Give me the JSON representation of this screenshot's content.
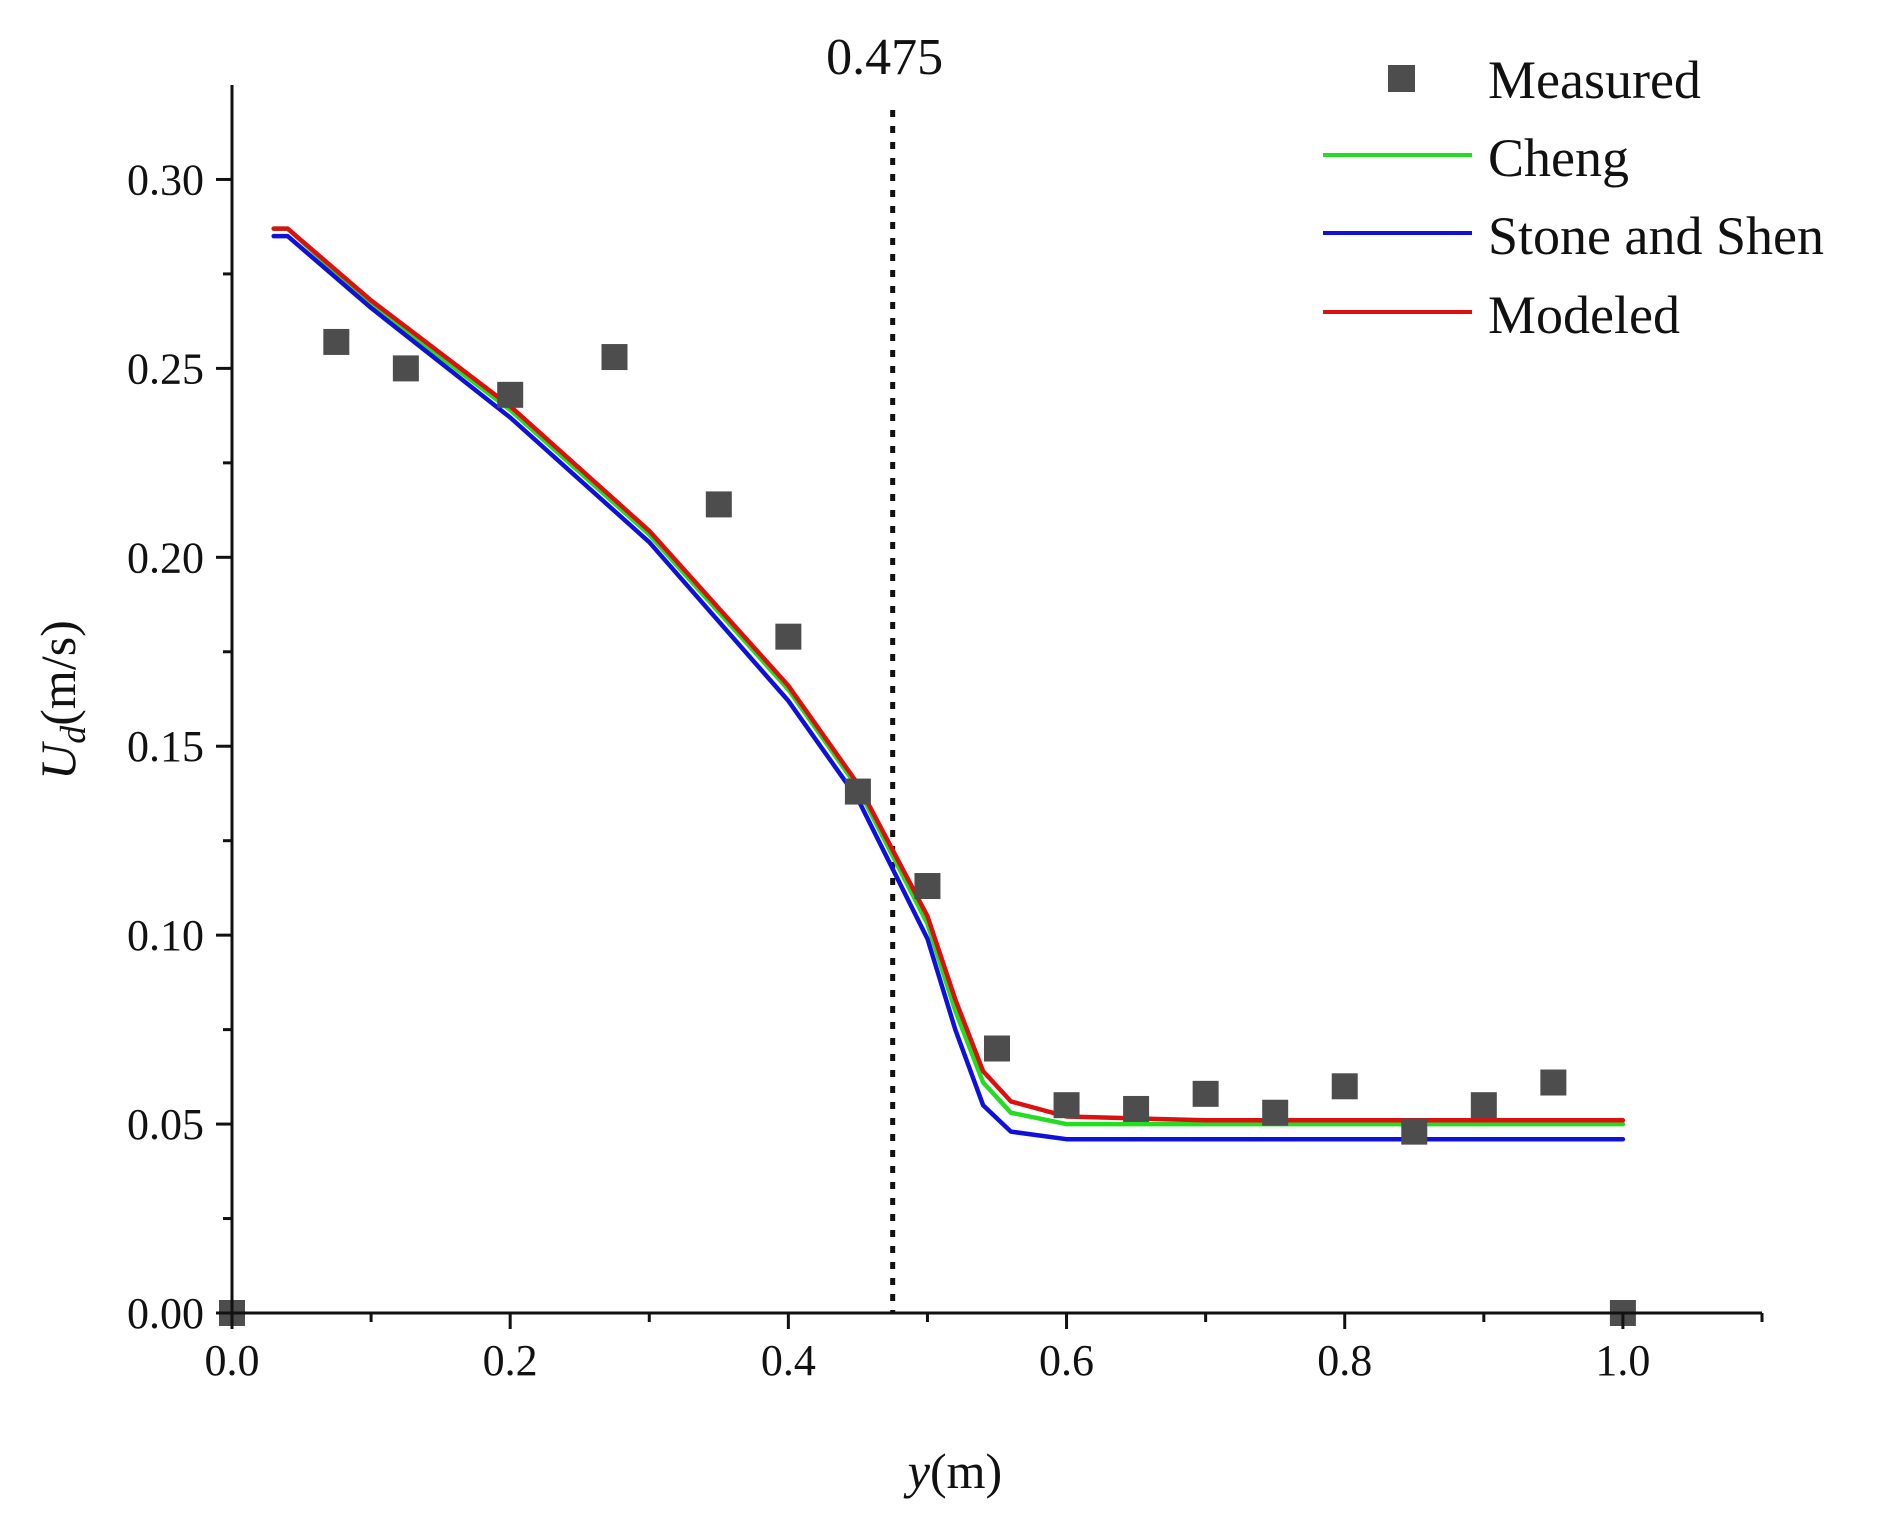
{
  "chart_data": {
    "type": "line",
    "xlabel": {
      "italic": "y",
      "rest": "(m)"
    },
    "ylabel": {
      "italic": "U",
      "subscript": "d",
      "rest": "(m/s)"
    },
    "xlim": [
      0.0,
      1.1
    ],
    "ylim": [
      0.0,
      0.325
    ],
    "x_ticks": [
      0.0,
      0.2,
      0.4,
      0.6,
      0.8,
      1.0
    ],
    "x_tick_labels": [
      "0.0",
      "0.2",
      "0.4",
      "0.6",
      "0.8",
      "1.0"
    ],
    "x_minor_ticks": [
      0.1,
      0.3,
      0.5,
      0.7,
      0.9,
      1.1
    ],
    "y_ticks": [
      0.0,
      0.05,
      0.1,
      0.15,
      0.2,
      0.25,
      0.3
    ],
    "y_tick_labels": [
      "0.00",
      "0.05",
      "0.10",
      "0.15",
      "0.20",
      "0.25",
      "0.30"
    ],
    "y_minor_ticks": [
      0.025,
      0.075,
      0.125,
      0.175,
      0.225,
      0.275
    ],
    "vline": {
      "x": 0.475,
      "label": "0.475"
    },
    "legend_position": "top-right",
    "series": [
      {
        "name": "Measured",
        "kind": "scatter",
        "color": "#4d4d4d",
        "x": [
          0.0,
          0.075,
          0.125,
          0.2,
          0.275,
          0.35,
          0.4,
          0.45,
          0.5,
          0.55,
          0.6,
          0.65,
          0.7,
          0.75,
          0.8,
          0.85,
          0.9,
          0.95,
          1.0
        ],
        "y": [
          0.0,
          0.257,
          0.25,
          0.243,
          0.253,
          0.214,
          0.179,
          0.138,
          0.113,
          0.07,
          0.055,
          0.054,
          0.058,
          0.053,
          0.06,
          0.048,
          0.055,
          0.061,
          0.0
        ]
      },
      {
        "name": "Cheng",
        "kind": "line",
        "color": "#22dd22",
        "x": [
          0.03,
          0.04,
          0.1,
          0.2,
          0.3,
          0.4,
          0.45,
          0.5,
          0.52,
          0.54,
          0.56,
          0.6,
          0.7,
          1.0
        ],
        "y": [
          0.287,
          0.287,
          0.267,
          0.239,
          0.206,
          0.165,
          0.139,
          0.103,
          0.08,
          0.061,
          0.053,
          0.05,
          0.05,
          0.05
        ]
      },
      {
        "name": "Stone and Shen",
        "kind": "line",
        "color": "#1010dd",
        "x": [
          0.03,
          0.04,
          0.1,
          0.2,
          0.3,
          0.4,
          0.45,
          0.5,
          0.52,
          0.54,
          0.56,
          0.6,
          0.7,
          1.0
        ],
        "y": [
          0.285,
          0.285,
          0.266,
          0.237,
          0.204,
          0.162,
          0.136,
          0.099,
          0.075,
          0.055,
          0.048,
          0.046,
          0.046,
          0.046
        ]
      },
      {
        "name": "Modeled",
        "kind": "line",
        "color": "#dd1010",
        "x": [
          0.03,
          0.04,
          0.1,
          0.2,
          0.3,
          0.4,
          0.45,
          0.5,
          0.52,
          0.54,
          0.56,
          0.6,
          0.7,
          1.0
        ],
        "y": [
          0.287,
          0.287,
          0.268,
          0.24,
          0.207,
          0.166,
          0.14,
          0.105,
          0.083,
          0.064,
          0.056,
          0.052,
          0.051,
          0.051
        ]
      }
    ]
  }
}
